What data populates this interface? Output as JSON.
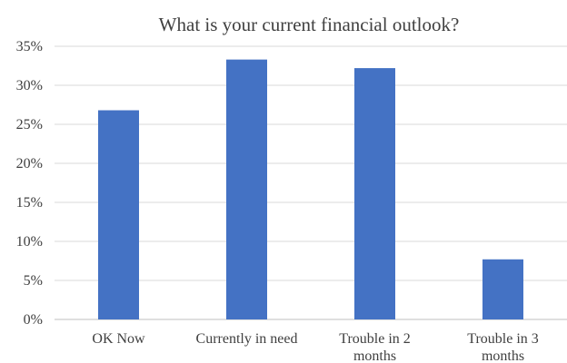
{
  "chart_data": {
    "type": "bar",
    "title": "What is your current financial outlook?",
    "xlabel": "",
    "ylabel": "",
    "categories": [
      "OK Now",
      "Currently in need",
      "Trouble in 2 months",
      "Trouble in 3 months"
    ],
    "category_lines": [
      [
        "OK Now"
      ],
      [
        "Currently in need"
      ],
      [
        "Trouble in 2",
        "months"
      ],
      [
        "Trouble in 3",
        "months"
      ]
    ],
    "values": [
      26.8,
      33.3,
      32.2,
      7.7
    ],
    "ylim": [
      0,
      35
    ],
    "yticks": [
      0,
      5,
      10,
      15,
      20,
      25,
      30,
      35
    ],
    "ytick_labels": [
      "0%",
      "5%",
      "10%",
      "15%",
      "20%",
      "25%",
      "30%",
      "35%"
    ],
    "bar_color": "#4472c4",
    "grid": true,
    "legend": "none"
  }
}
